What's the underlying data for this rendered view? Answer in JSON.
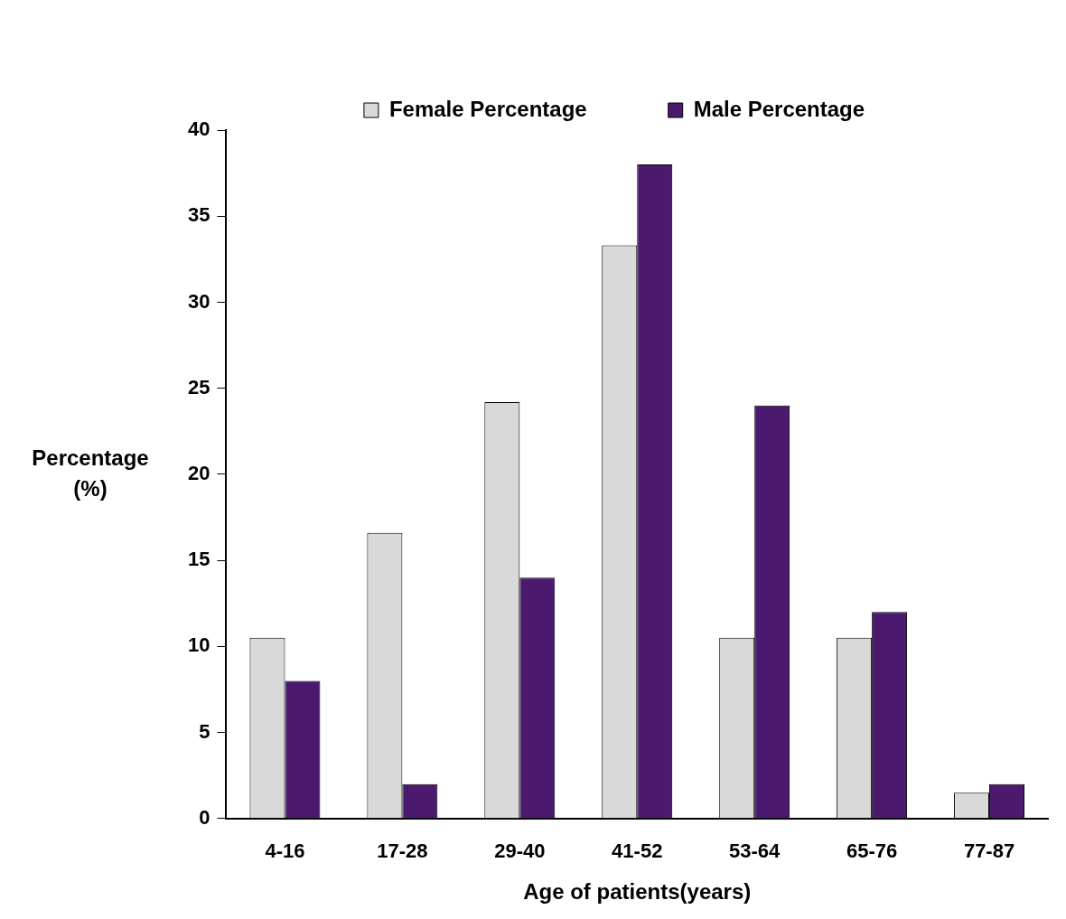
{
  "chart_data": {
    "type": "bar",
    "xlabel": "Age of patients(years)",
    "ylabel": "Percentage (%)",
    "categories": [
      "4-16",
      "17-28",
      "29-40",
      "41-52",
      "53-64",
      "65-76",
      "77-87"
    ],
    "series": [
      {
        "name": "Female Percentage",
        "color": "#d9d9d9",
        "values": [
          10.5,
          16.6,
          24.2,
          33.3,
          10.5,
          10.5,
          1.5
        ]
      },
      {
        "name": "Male Percentage",
        "color": "#4b1a6e",
        "values": [
          8,
          2,
          14,
          38,
          24,
          12,
          2
        ]
      }
    ],
    "ylim": [
      0,
      40
    ],
    "yticks": [
      0,
      5,
      10,
      15,
      20,
      25,
      30,
      35,
      40
    ],
    "grid": false,
    "legend": "top"
  }
}
